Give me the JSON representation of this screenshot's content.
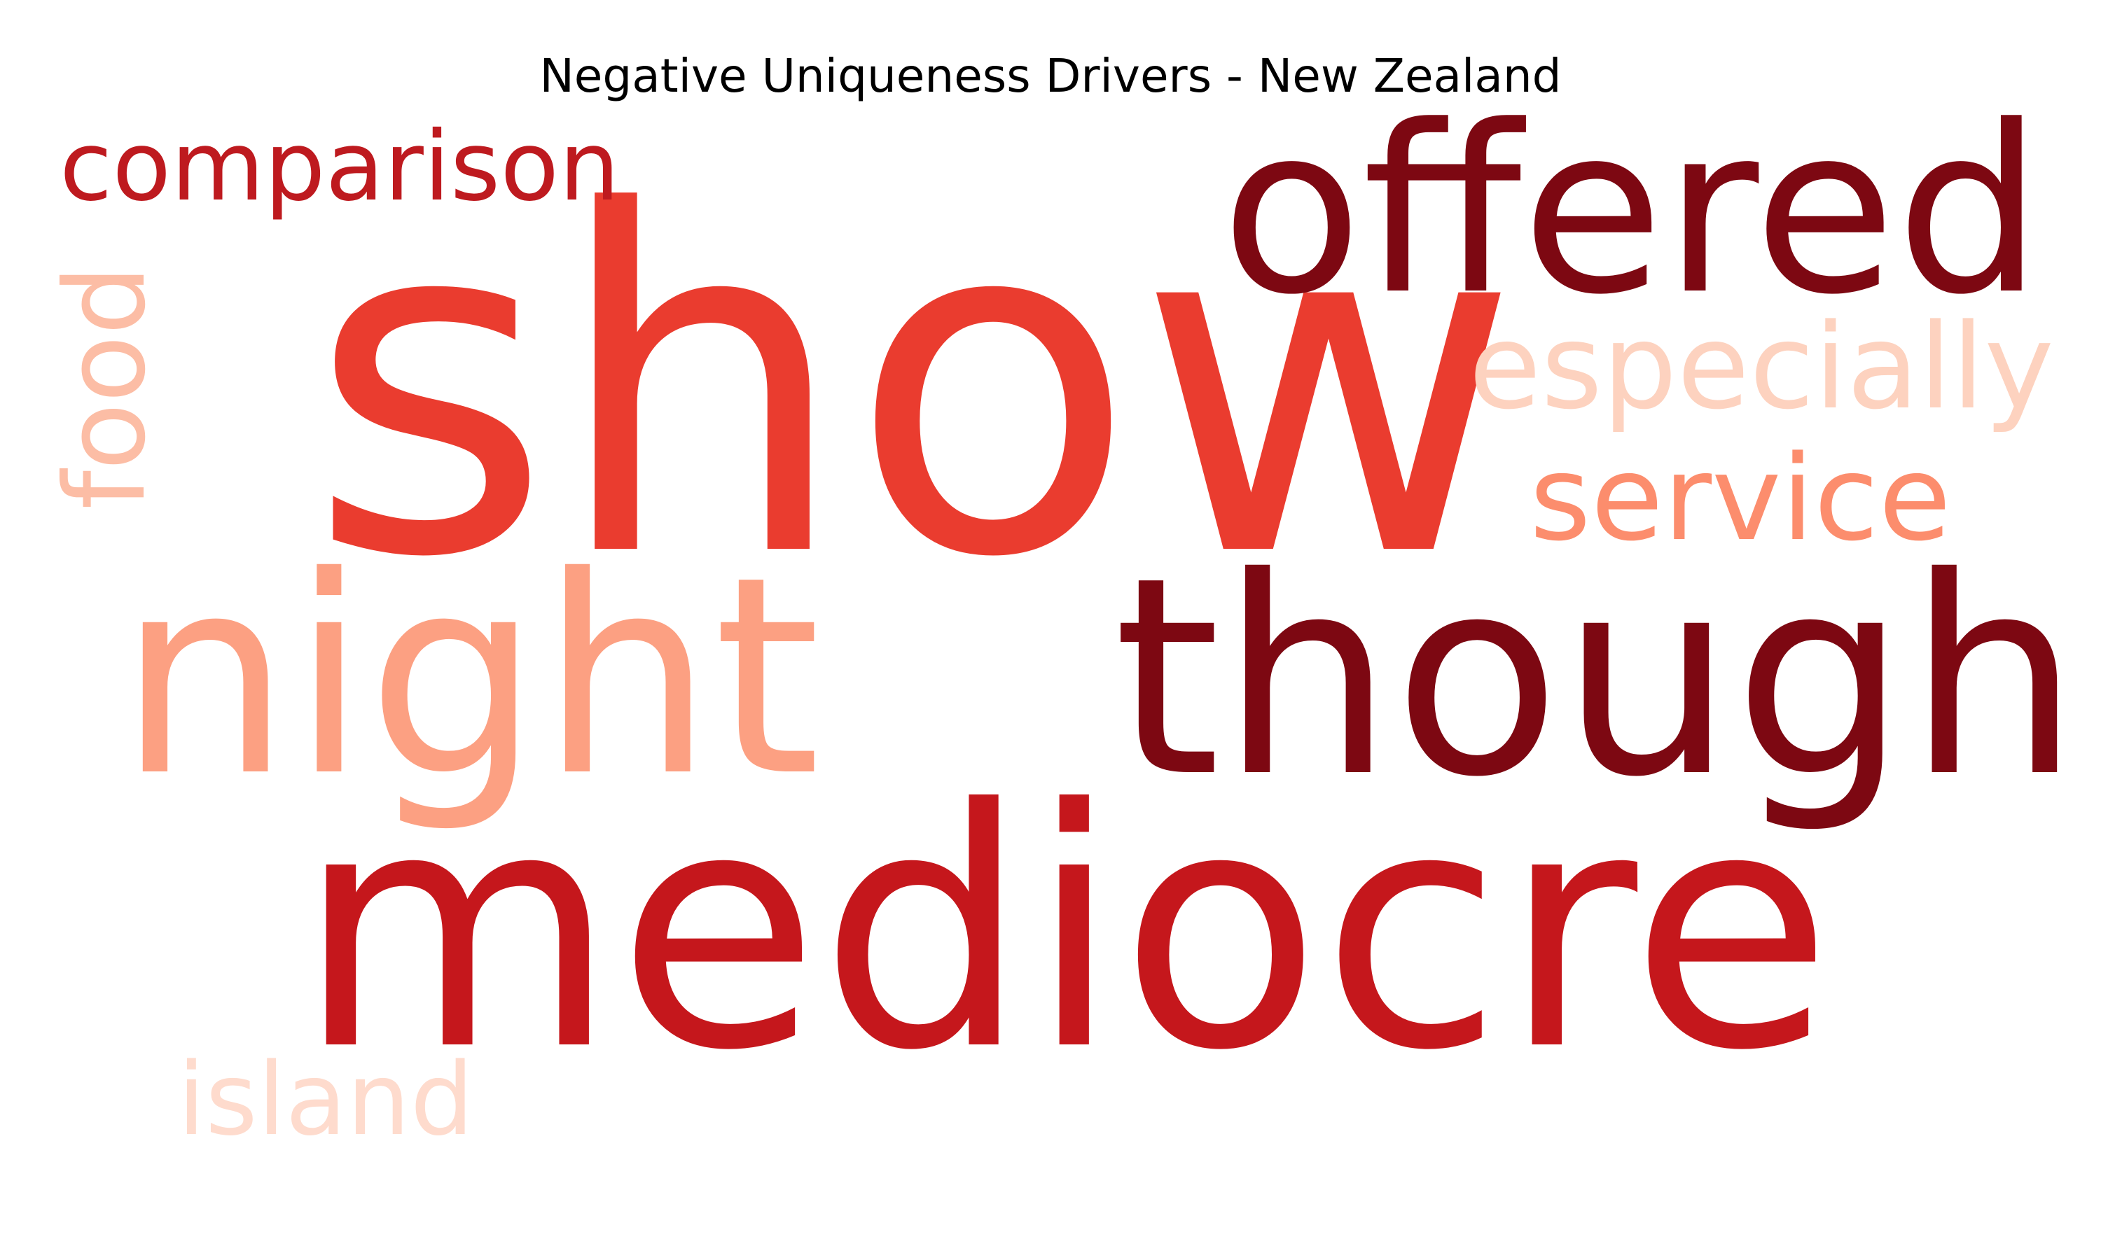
{
  "title": "Negative Uniqueness Drivers - New Zealand",
  "words": [
    {
      "text": "show",
      "color": "#ea3c2f",
      "orientation": "horizontal"
    },
    {
      "text": "mediocre",
      "color": "#c5171c",
      "orientation": "horizontal"
    },
    {
      "text": "though",
      "color": "#7d0812",
      "orientation": "horizontal"
    },
    {
      "text": "offered",
      "color": "#7d0812",
      "orientation": "horizontal"
    },
    {
      "text": "night",
      "color": "#fca082",
      "orientation": "horizontal"
    },
    {
      "text": "service",
      "color": "#fc8d6d",
      "orientation": "horizontal"
    },
    {
      "text": "especially",
      "color": "#fdd2bf",
      "orientation": "horizontal"
    },
    {
      "text": "comparison",
      "color": "#be1a1f",
      "orientation": "horizontal"
    },
    {
      "text": "food",
      "color": "#fcbda5",
      "orientation": "vertical"
    },
    {
      "text": "island",
      "color": "#fedbcd",
      "orientation": "horizontal"
    }
  ]
}
